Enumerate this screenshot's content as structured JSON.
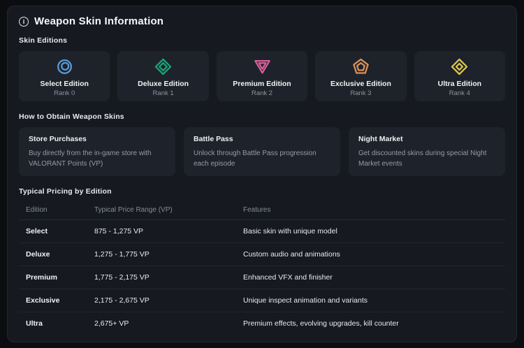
{
  "header": {
    "title": "Weapon Skin Information",
    "icon_glyph": "i"
  },
  "sections": {
    "editions": {
      "label": "Skin Editions",
      "items": [
        {
          "name": "Select Edition",
          "rank": "Rank 0",
          "shape": "circle",
          "color": "#5b9ad9"
        },
        {
          "name": "Deluxe Edition",
          "rank": "Rank 1",
          "shape": "diamond",
          "color": "#17a879"
        },
        {
          "name": "Premium Edition",
          "rank": "Rank 2",
          "shape": "triangle",
          "color": "#d9609c"
        },
        {
          "name": "Exclusive Edition",
          "rank": "Rank 3",
          "shape": "pentagon",
          "color": "#d9935a"
        },
        {
          "name": "Ultra Edition",
          "rank": "Rank 4",
          "shape": "diamond2",
          "color": "#ddc94f"
        }
      ]
    },
    "obtain": {
      "label": "How to Obtain Weapon Skins",
      "items": [
        {
          "title": "Store Purchases",
          "description": "Buy directly from the in-game store with VALORANT Points (VP)"
        },
        {
          "title": "Battle Pass",
          "description": "Unlock through Battle Pass progression each episode"
        },
        {
          "title": "Night Market",
          "description": "Get discounted skins during special Night Market events"
        }
      ]
    },
    "pricing": {
      "label": "Typical Pricing by Edition",
      "columns": [
        "Edition",
        "Typical Price Range (VP)",
        "Features"
      ],
      "rows": [
        {
          "edition": "Select",
          "price": "875 - 1,275 VP",
          "features": "Basic skin with unique model"
        },
        {
          "edition": "Deluxe",
          "price": "1,275 - 1,775 VP",
          "features": "Custom audio and animations"
        },
        {
          "edition": "Premium",
          "price": "1,775 - 2,175 VP",
          "features": "Enhanced VFX and finisher"
        },
        {
          "edition": "Exclusive",
          "price": "2,175 - 2,675 VP",
          "features": "Unique inspect animation and variants"
        },
        {
          "edition": "Ultra",
          "price": "2,675+ VP",
          "features": "Premium effects, evolving upgrades, kill counter"
        }
      ]
    }
  },
  "colors": {
    "page_bg": "#0b0d10",
    "panel_bg": "#16191f",
    "card_bg": "#1e222a",
    "muted_text": "#959ca6",
    "divider": "#262b33"
  }
}
